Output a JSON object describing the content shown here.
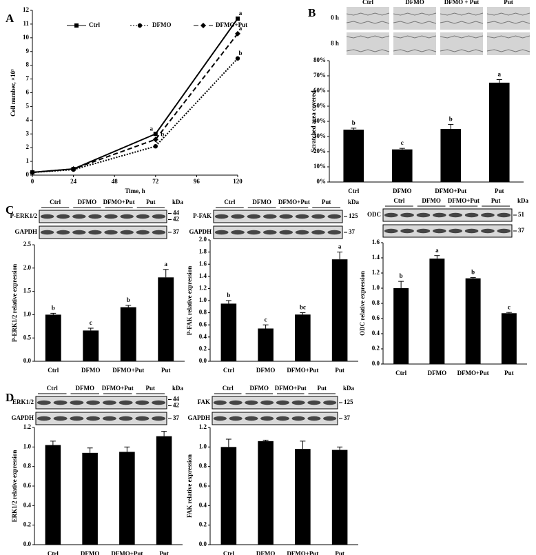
{
  "panel_labels": [
    "A",
    "B",
    "C",
    "D"
  ],
  "chart_data": [
    {
      "type": "line",
      "x_label": "Time, h",
      "y_label": "Cell number, ×10⁵",
      "x": [
        0,
        24,
        72,
        120
      ],
      "xlim": [
        0,
        120
      ],
      "xticks": [
        0,
        24,
        48,
        72,
        96,
        120
      ],
      "ylim": [
        0,
        12
      ],
      "yticks": [
        0,
        1,
        2,
        3,
        4,
        5,
        6,
        7,
        8,
        9,
        10,
        11,
        12
      ],
      "series": [
        {
          "name": "Ctrl",
          "color": "#000000",
          "marker": "square",
          "dash": "solid",
          "values": [
            0.2,
            0.45,
            3.0,
            11.4
          ],
          "letters": [
            null,
            null,
            "a",
            "a"
          ]
        },
        {
          "name": "DFMO",
          "color": "#000000",
          "marker": "circle",
          "dash": "dotted",
          "values": [
            0.2,
            0.4,
            2.1,
            8.5
          ],
          "letters": [
            null,
            null,
            "c",
            "b"
          ]
        },
        {
          "name": "DFMO+Put",
          "color": "#000000",
          "marker": "diamond",
          "dash": "dashed",
          "values": [
            0.2,
            0.45,
            2.6,
            10.3
          ],
          "letters": [
            null,
            null,
            "b",
            "a"
          ]
        }
      ]
    },
    {
      "type": "bar",
      "y_label": "Scratched area covered",
      "images": {
        "columns": [
          "Ctrl",
          "DFMO",
          "DFMO + Put",
          "Put"
        ],
        "rows": [
          "0 h",
          "8 h"
        ]
      },
      "categories": [
        "Ctrl",
        "DFMO",
        "DFMO+Put",
        "Put"
      ],
      "values": [
        34.5,
        21.5,
        35,
        65.5
      ],
      "errors": [
        1,
        0.7,
        3,
        2
      ],
      "letters": [
        "b",
        "c",
        "b",
        "a"
      ],
      "color": "#000000",
      "ylim": [
        0,
        80
      ],
      "yticks": [
        {
          "value": 0,
          "label": "0%"
        },
        {
          "value": 10,
          "label": "10%"
        },
        {
          "value": 20,
          "label": "20%"
        },
        {
          "value": 30,
          "label": "30%"
        },
        {
          "value": 40,
          "label": "40%"
        },
        {
          "value": 50,
          "label": "50%"
        },
        {
          "value": 60,
          "label": "60%"
        },
        {
          "value": 70,
          "label": "70%"
        },
        {
          "value": 80,
          "label": "80%"
        }
      ]
    },
    {
      "type": "bar",
      "y_label": "P-ERK1/2 relative expression",
      "blot": {
        "groups": [
          "Ctrl",
          "DFMO",
          "DFMO+Put",
          "Put"
        ],
        "unit": "kDa",
        "rows": [
          {
            "name": "P-ERK1/2",
            "kda": [
              44,
              42
            ]
          },
          {
            "name": "GAPDH",
            "kda": [
              37
            ]
          }
        ]
      },
      "categories": [
        "Ctrl",
        "DFMO",
        "DFMO+Put",
        "Put"
      ],
      "values": [
        1.0,
        0.66,
        1.16,
        1.8
      ],
      "errors": [
        0.03,
        0.05,
        0.04,
        0.17
      ],
      "letters": [
        "b",
        "c",
        "b",
        "a"
      ],
      "color": "#000000",
      "ylim": [
        0,
        2.5
      ],
      "yticks": [
        {
          "value": 0,
          "label": "0.0"
        },
        0.5,
        {
          "value": 1,
          "label": "1.0"
        },
        1.5,
        {
          "value": 2,
          "label": "2.0"
        },
        2.5
      ]
    },
    {
      "type": "bar",
      "y_label": "P-FAK relative expression",
      "blot": {
        "groups": [
          "Ctrl",
          "DFMO",
          "DFMO+Put",
          "Put"
        ],
        "unit": "kDa",
        "rows": [
          {
            "name": "P-FAK",
            "kda": [
              125
            ]
          },
          {
            "name": "GAPDH",
            "kda": [
              37
            ]
          }
        ]
      },
      "categories": [
        "Ctrl",
        "DFMO",
        "DFMO+Put",
        "Put"
      ],
      "values": [
        0.95,
        0.54,
        0.77,
        1.68
      ],
      "errors": [
        0.05,
        0.06,
        0.03,
        0.12
      ],
      "letters": [
        "b",
        "c",
        "bc",
        "a"
      ],
      "color": "#000000",
      "ylim": [
        0,
        2
      ],
      "yticks": [
        {
          "value": 0,
          "label": "0.0"
        },
        0.2,
        0.4,
        0.6,
        0.8,
        {
          "value": 1,
          "label": "1.0"
        },
        1.2,
        1.4,
        1.6,
        1.8,
        {
          "value": 2,
          "label": "2.0"
        }
      ]
    },
    {
      "type": "bar",
      "y_label": "ODC relative expression",
      "blot": {
        "groups": [
          "Ctrl",
          "DFMO",
          "DFMO+Put",
          "Put"
        ],
        "unit": "kDa",
        "rows": [
          {
            "name": "ODC",
            "kda": [
              51
            ]
          },
          {
            "name": "",
            "kda": [
              37
            ]
          }
        ]
      },
      "categories": [
        "Ctrl",
        "DFMO",
        "DFMO+Put",
        "Put"
      ],
      "values": [
        1.0,
        1.39,
        1.13,
        0.67
      ],
      "errors": [
        0.09,
        0.04,
        0.01,
        0.01
      ],
      "letters": [
        "b",
        "a",
        "b",
        "c"
      ],
      "color": "#000000",
      "ylim": [
        0,
        1.6
      ],
      "yticks": [
        {
          "value": 0,
          "label": "0.0"
        },
        0.2,
        0.4,
        0.6,
        0.8,
        {
          "value": 1,
          "label": "1.0"
        },
        1.2,
        1.4,
        1.6
      ]
    },
    {
      "type": "bar",
      "y_label": "ERK1/2 relative expression",
      "blot": {
        "groups": [
          "Ctrl",
          "DFMO",
          "DFMO+Put",
          "Put"
        ],
        "unit": "kDa",
        "rows": [
          {
            "name": "ERK1/2",
            "kda": [
              44,
              42
            ]
          },
          {
            "name": "GAPDH",
            "kda": [
              37
            ]
          }
        ]
      },
      "categories": [
        "Ctrl",
        "DFMO",
        "DFMO+Put",
        "Put"
      ],
      "values": [
        1.02,
        0.94,
        0.95,
        1.11
      ],
      "errors": [
        0.04,
        0.05,
        0.05,
        0.05
      ],
      "color": "#000000",
      "ylim": [
        0,
        1.2
      ],
      "yticks": [
        {
          "value": 0,
          "label": "0.0"
        },
        0.2,
        0.4,
        0.6,
        0.8,
        {
          "value": 1,
          "label": "1.0"
        },
        1.2
      ]
    },
    {
      "type": "bar",
      "y_label": "FAK relative expression",
      "blot": {
        "groups": [
          "Ctrl",
          "DFMO",
          "DFMO+Put",
          "Put"
        ],
        "unit": "kDa",
        "rows": [
          {
            "name": "FAK",
            "kda": [
              125
            ]
          },
          {
            "name": "GAPDH",
            "kda": [
              37
            ]
          }
        ]
      },
      "categories": [
        "Ctrl",
        "DFMO",
        "DFMO+Put",
        "Put"
      ],
      "values": [
        1.0,
        1.06,
        0.98,
        0.97
      ],
      "errors": [
        0.08,
        0.01,
        0.08,
        0.03
      ],
      "color": "#000000",
      "ylim": [
        0,
        1.2
      ],
      "yticks": [
        {
          "value": 0,
          "label": "0.0"
        },
        0.2,
        0.4,
        0.6,
        0.8,
        {
          "value": 1,
          "label": "1.0"
        },
        1.2
      ]
    }
  ]
}
